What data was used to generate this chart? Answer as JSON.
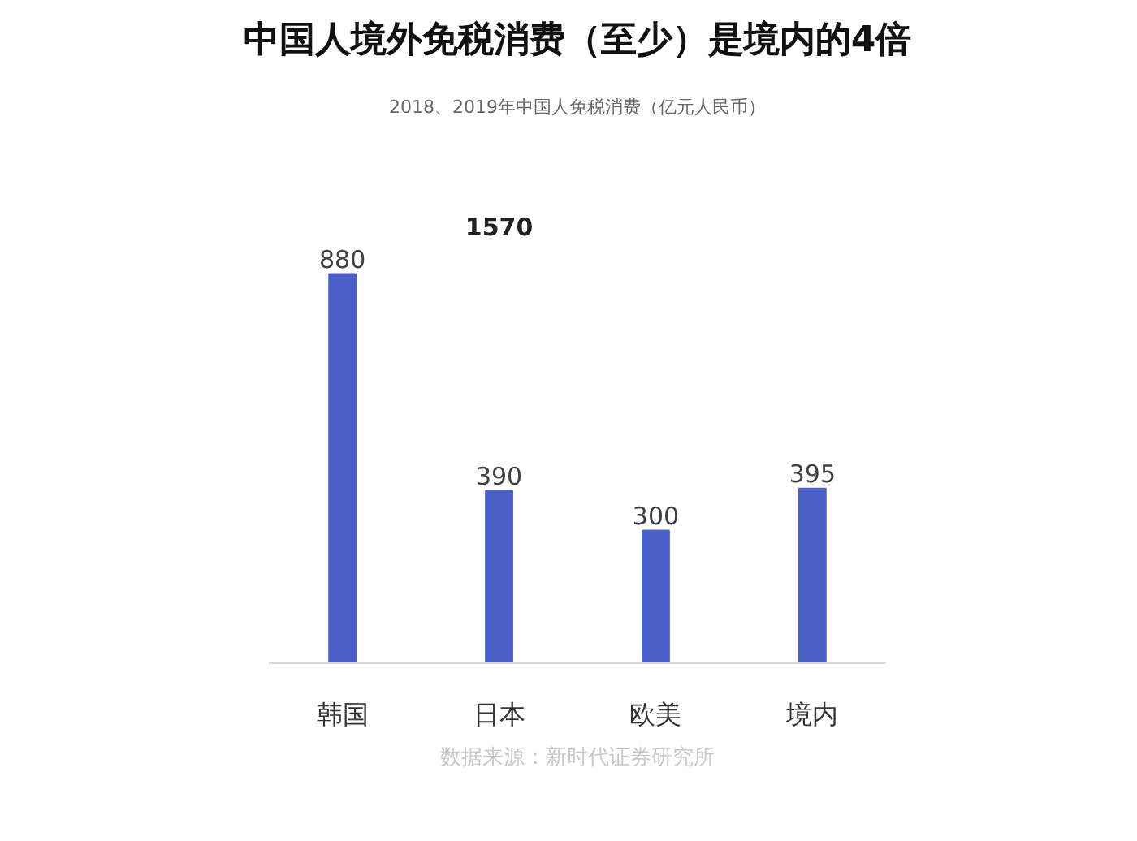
{
  "chart_data": {
    "type": "bar",
    "title": "中国人境外免税消费（至少）是境内的4倍",
    "subtitle": "2018、2019年中国人免税消费（亿元人民币）",
    "categories": [
      "韩国",
      "日本",
      "欧美",
      "境内"
    ],
    "values": [
      880,
      390,
      300,
      395
    ],
    "color": "#4a5fc8",
    "data_labels": true,
    "annotations": [
      "1570",
      "数据来源：新时代证券研究所"
    ]
  }
}
